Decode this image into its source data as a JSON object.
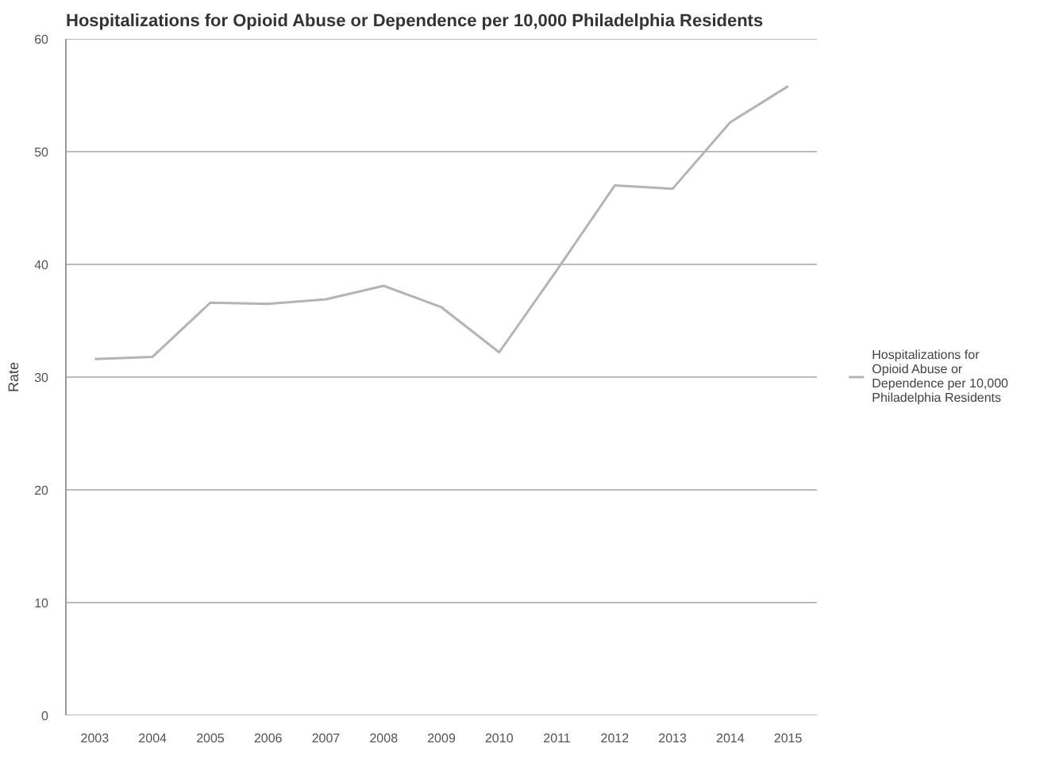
{
  "chart_data": {
    "type": "line",
    "title": "Hospitalizations for Opioid Abuse or Dependence per 10,000 Philadelphia Residents",
    "ylabel": "Rate",
    "categories": [
      "2003",
      "2004",
      "2005",
      "2006",
      "2007",
      "2008",
      "2009",
      "2010",
      "2011",
      "2012",
      "2013",
      "2014",
      "2015"
    ],
    "series": [
      {
        "name": "Hospitalizations for Opioid Abuse or Dependence per 10,000 Philadelphia Residents",
        "color": "#b4b4b4",
        "values": [
          31.6,
          31.8,
          36.6,
          36.5,
          36.9,
          38.1,
          36.2,
          32.2,
          39.5,
          47.0,
          46.7,
          52.6,
          55.8
        ]
      }
    ],
    "ylim": [
      0,
      60
    ],
    "yticks": [
      0,
      10,
      20,
      30,
      40,
      50,
      60
    ],
    "grid": "y",
    "legend": "right",
    "marker": "none",
    "line_style": "solid"
  }
}
